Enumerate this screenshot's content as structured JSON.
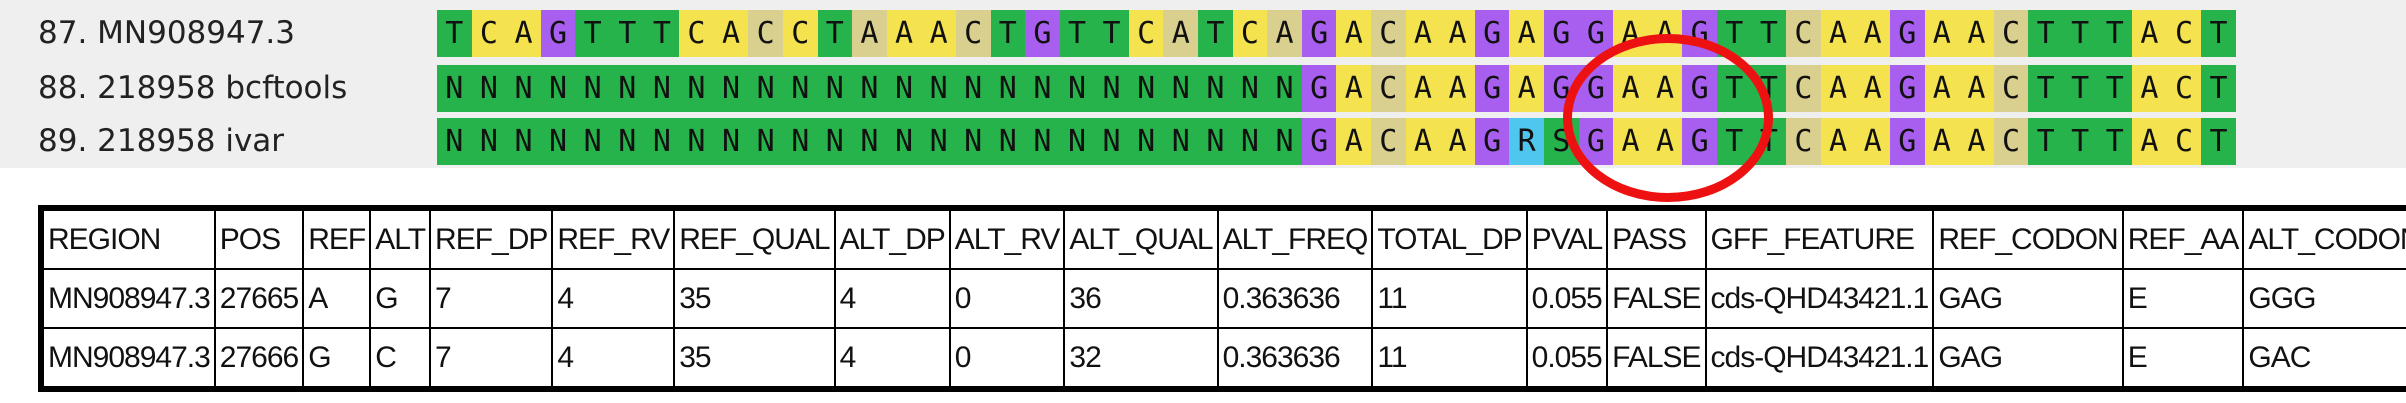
{
  "alignment": {
    "rows": [
      {
        "label": "87. MN908947.3",
        "sequence": "TCAGTTTCACCTAAACTGTTCATCAGACAAGAGGAAGTTCAAGAACTTTACT"
      },
      {
        "label": "88. 218958 bcftools",
        "sequence": "NNNNNNNNNNNNNNNNNNNNNNNNNGACAAGAGGAAGTTCAAGAACTTTACT"
      },
      {
        "label": "89. 218958 ivar",
        "sequence": "NNNNNNNNNNNNNNNNNNNNNNNNNGACAAGRSGAAGTTCAAGAACTTTACT"
      }
    ],
    "colors": {
      "A": "#f5e24f",
      "C": "#f5e24f",
      "G": "#a85fef",
      "T": "#27b34b",
      "N": "#27b34b",
      "R": "#4fc6ee",
      "S": "#27b34b"
    },
    "highlight_color": "#ee1111"
  },
  "table": {
    "columns": [
      "REGION",
      "POS",
      "REF",
      "ALT",
      "REF_DP",
      "REF_RV",
      "REF_QUAL",
      "ALT_DP",
      "ALT_RV",
      "ALT_QUAL",
      "ALT_FREQ",
      "TOTAL_DP",
      "PVAL",
      "PASS",
      "GFF_FEATURE",
      "REF_CODON",
      "REF_AA",
      "ALT_CODON"
    ],
    "rows": [
      [
        "MN908947.3",
        "27665",
        "A",
        "G",
        "7",
        "4",
        "35",
        "4",
        "0",
        "36",
        "0.363636",
        "11",
        "0.055",
        "FALSE",
        "cds-QHD43421.1",
        "GAG",
        "E",
        "GGG"
      ],
      [
        "MN908947.3",
        "27666",
        "G",
        "C",
        "7",
        "4",
        "35",
        "4",
        "0",
        "32",
        "0.363636",
        "11",
        "0.055",
        "FALSE",
        "cds-QHD43421.1",
        "GAG",
        "E",
        "GAC"
      ]
    ]
  }
}
